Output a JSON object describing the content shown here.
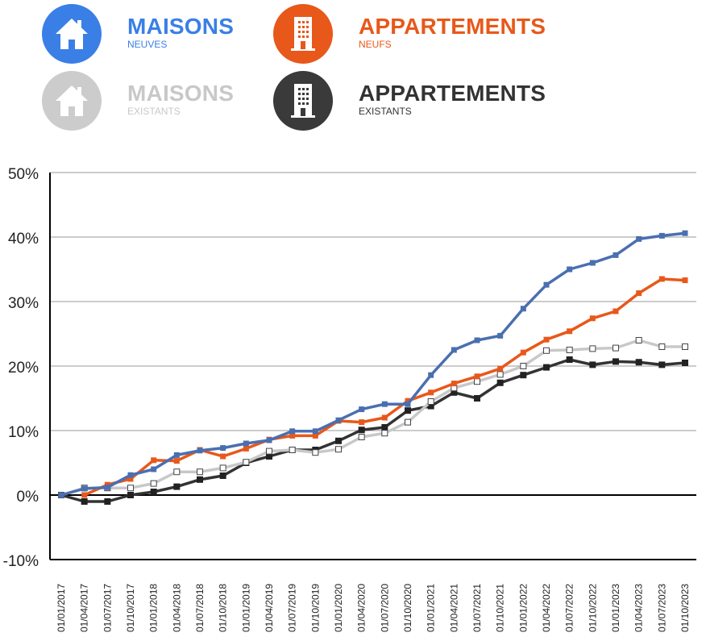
{
  "legend": [
    {
      "title": "MAISONS",
      "subtitle": "NEUVES",
      "icon": "house-icon",
      "color": "#3a7fe6",
      "text_color": "#3a7fe6"
    },
    {
      "title": "APPARTEMENTS",
      "subtitle": "NEUFS",
      "icon": "building-icon",
      "color": "#e8581a",
      "text_color": "#e8581a"
    },
    {
      "title": "MAISONS",
      "subtitle": "EXISTANTS",
      "icon": "house-icon",
      "color": "#cccccc",
      "text_color": "#c8c8c8"
    },
    {
      "title": "APPARTEMENTS",
      "subtitle": "EXISTANTS",
      "icon": "building-icon",
      "color": "#3a3a3a",
      "text_color": "#333333"
    }
  ],
  "chart_data": {
    "type": "line",
    "categories": [
      "01/01/2017",
      "01/04/2017",
      "01/07/2017",
      "01/10/2017",
      "01/01/2018",
      "01/04/2018",
      "01/07/2018",
      "01/10/2018",
      "01/01/2019",
      "01/04/2019",
      "01/07/2019",
      "01/10/2019",
      "01/01/2020",
      "01/04/2020",
      "01/07/2020",
      "01/10/2020",
      "01/01/2021",
      "01/04/2021",
      "01/07/2021",
      "01/10/2021",
      "01/01/2022",
      "01/04/2022",
      "01/07/2022",
      "01/10/2022",
      "01/01/2023",
      "01/04/2023",
      "01/07/2023",
      "01/10/2023"
    ],
    "y_ticks": [
      "50%",
      "40%",
      "30%",
      "20%",
      "10%",
      "0%",
      "-10%"
    ],
    "ylim": [
      -10,
      50
    ],
    "grid": true,
    "series": [
      {
        "name": "MAISONS NEUVES",
        "color": "#4a6fb0",
        "marker": "filled",
        "values": [
          0,
          1.0,
          1.2,
          3.1,
          4.0,
          6.2,
          6.9,
          7.3,
          8.0,
          8.5,
          9.9,
          9.9,
          11.6,
          13.3,
          14.1,
          14.1,
          18.6,
          22.5,
          24.0,
          24.7,
          28.9,
          32.6,
          35.0,
          36.0,
          37.2,
          39.7,
          40.2,
          40.6
        ]
      },
      {
        "name": "APPARTEMENTS NEUFS",
        "color": "#e8581a",
        "marker": "filled",
        "values": [
          null,
          0,
          1.6,
          2.5,
          5.4,
          5.3,
          7.0,
          6.0,
          7.2,
          8.6,
          9.2,
          9.2,
          11.5,
          11.3,
          12.0,
          14.6,
          15.9,
          17.3,
          18.4,
          19.6,
          22.1,
          24.1,
          25.4,
          27.4,
          28.5,
          31.3,
          33.5,
          33.3
        ]
      },
      {
        "name": "MAISONS EXISTANTS",
        "color": "#c8c8c8",
        "marker": "hollow",
        "values": [
          0,
          1.1,
          1.1,
          1.1,
          1.8,
          3.6,
          3.6,
          4.2,
          5.1,
          6.8,
          7.0,
          6.6,
          7.1,
          9.0,
          9.6,
          11.3,
          14.5,
          16.6,
          17.6,
          18.7,
          20.0,
          22.4,
          22.5,
          22.7,
          22.8,
          24.0,
          23.0,
          23.0
        ]
      },
      {
        "name": "APPARTEMENTS EXISTANTS",
        "color": "#333333",
        "marker": "filled-dark",
        "values": [
          0,
          -1.0,
          -1.0,
          0,
          0.5,
          1.3,
          2.4,
          3.0,
          5.0,
          6.0,
          7.0,
          7.0,
          8.4,
          10.1,
          10.5,
          13.1,
          13.8,
          15.9,
          15.0,
          17.4,
          18.6,
          19.8,
          21.0,
          20.2,
          20.7,
          20.6,
          20.2,
          20.5
        ]
      }
    ]
  }
}
